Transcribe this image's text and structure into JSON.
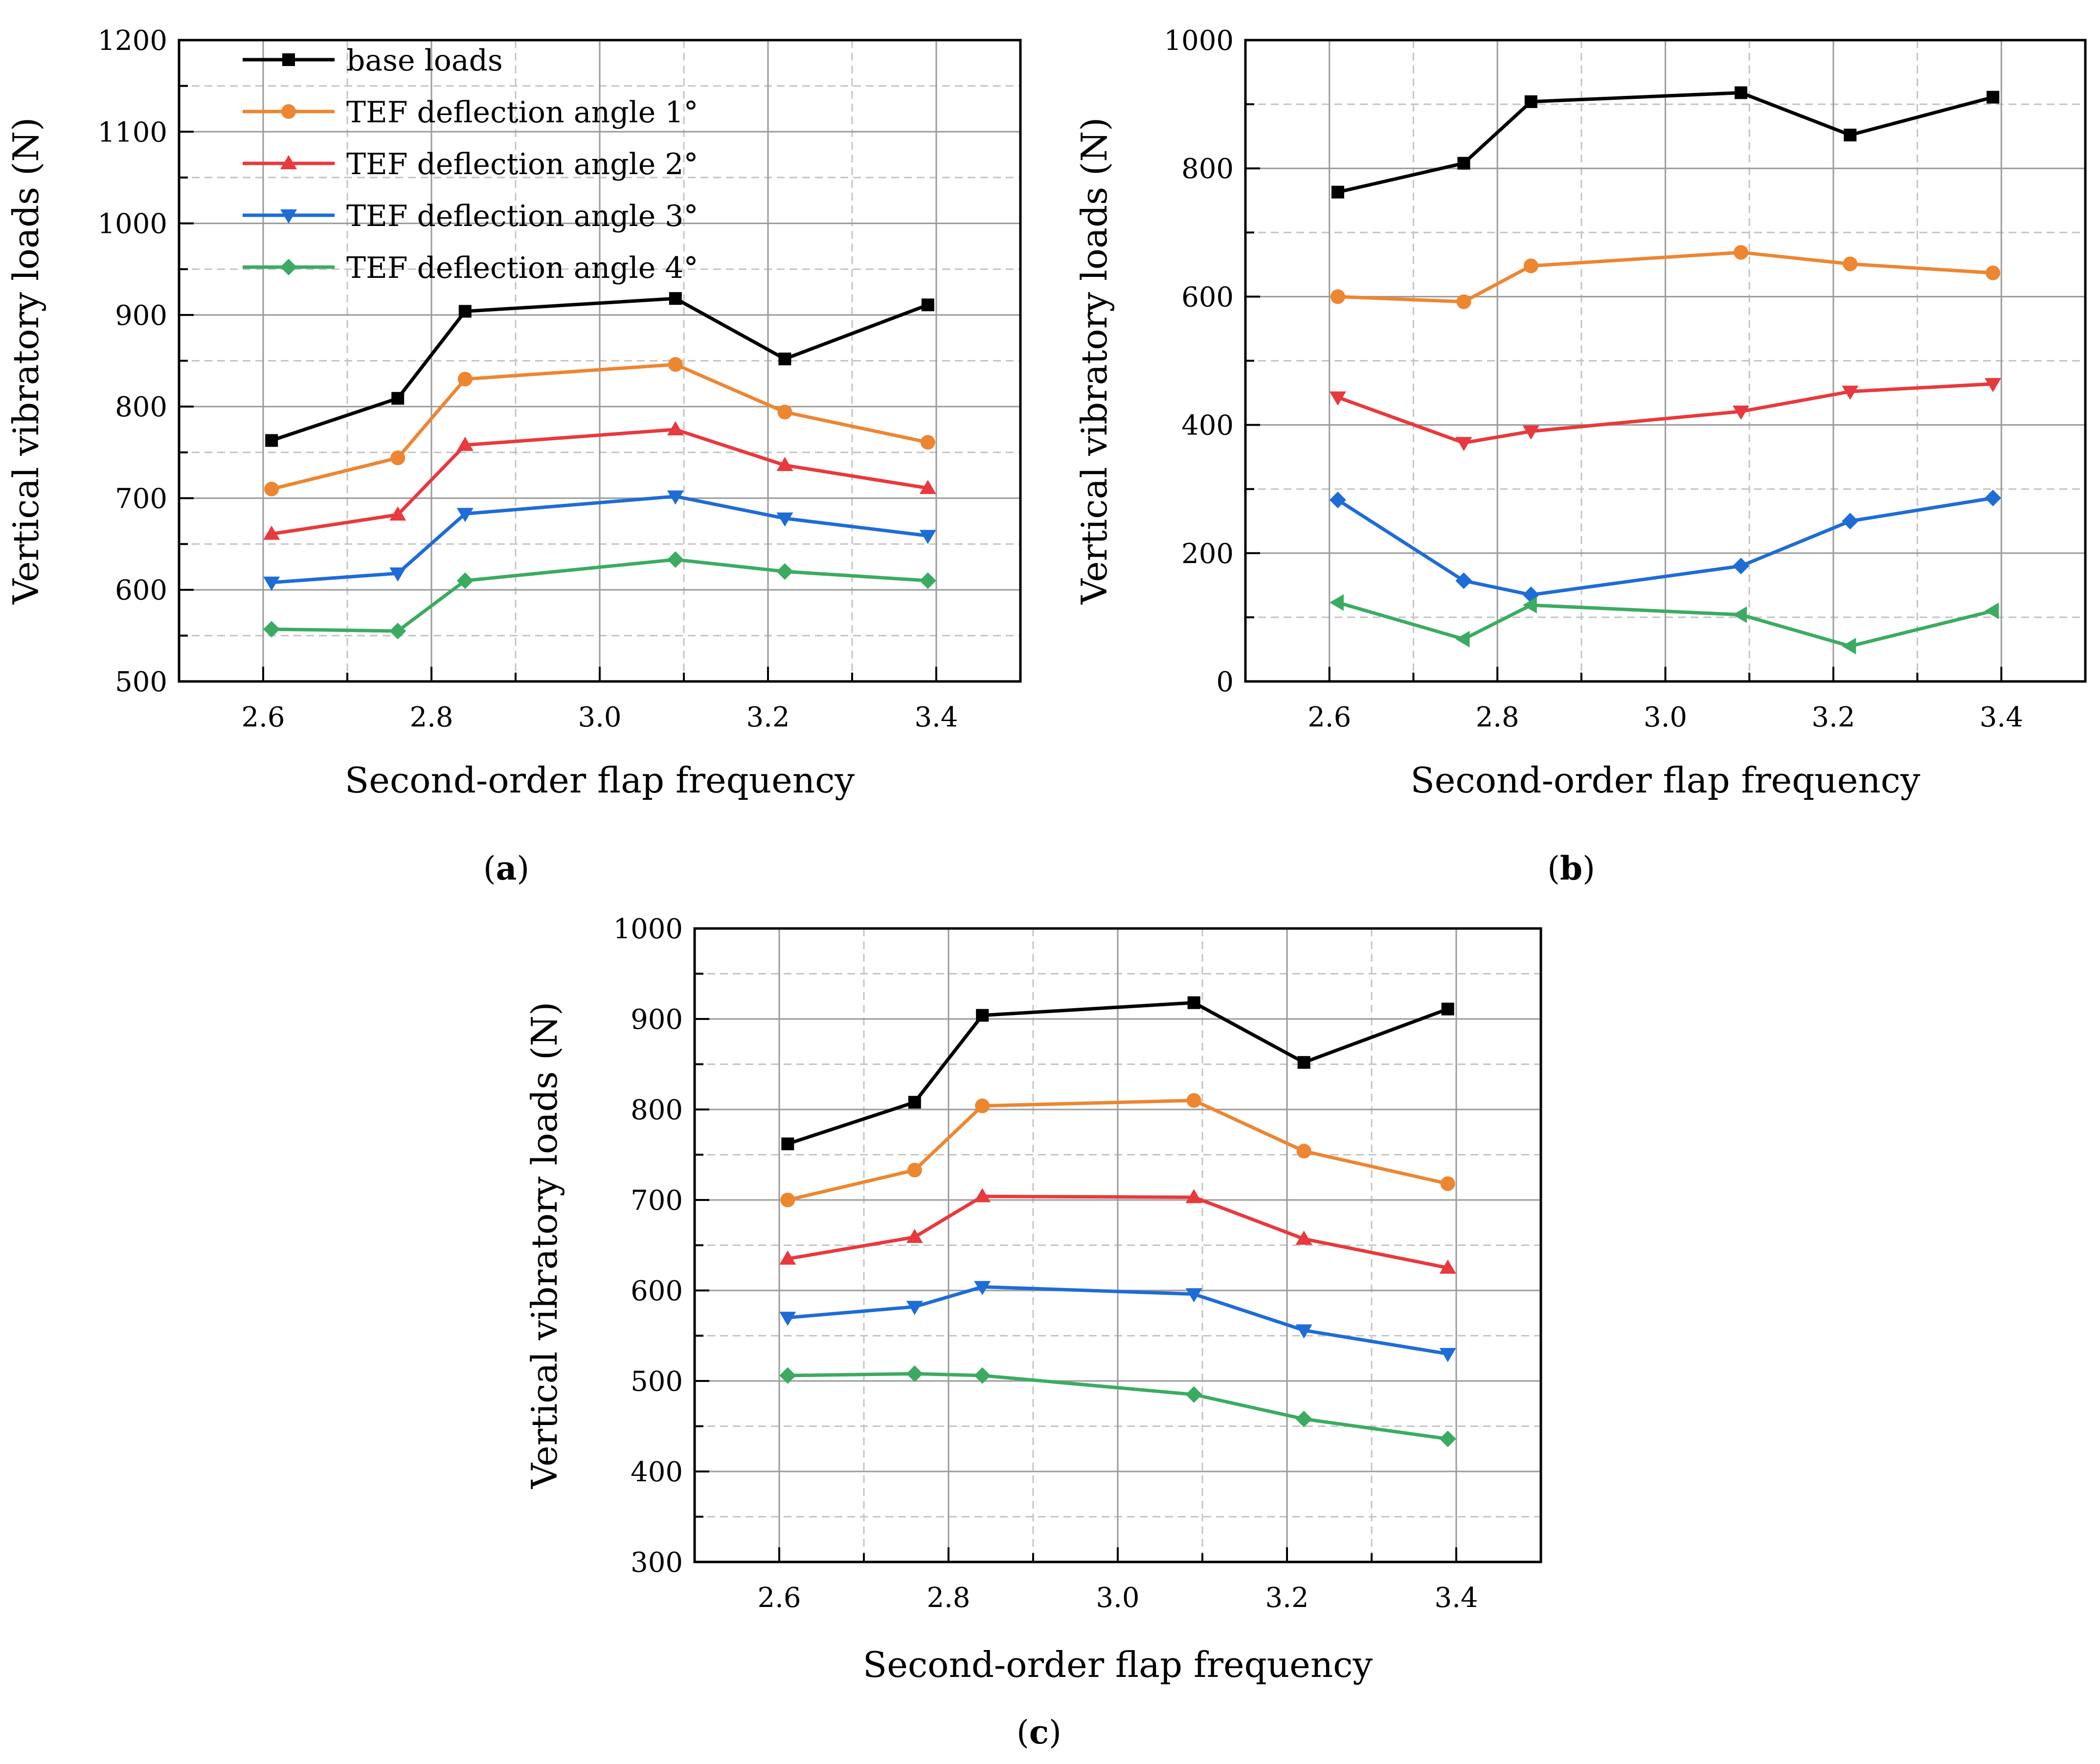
{
  "figure": {
    "captions": [
      "a",
      "b",
      "c"
    ]
  },
  "colors": {
    "base": "#000000",
    "angle1": "#ED8631",
    "angle2": "#E8393E",
    "angle3": "#1E6CD6",
    "angle4": "#3CAB62",
    "grid_major": "#9a9a9a",
    "grid_minor": "#c4c4c4"
  },
  "chart_data": [
    {
      "type": "line",
      "panel": "a",
      "xlabel": "Second-order flap frequency",
      "ylabel": "Vertical vibratory loads (N)",
      "xlim": [
        2.5,
        3.5
      ],
      "ylim": [
        500,
        1200
      ],
      "xticks": [
        2.6,
        2.8,
        3.0,
        3.2,
        3.4
      ],
      "yticks": [
        500,
        600,
        700,
        800,
        900,
        1000,
        1100,
        1200
      ],
      "xtick_labels": [
        "2.6",
        "2.8",
        "3.0",
        "3.2",
        "3.4"
      ],
      "ytick_labels": [
        "500",
        "600",
        "700",
        "800",
        "900",
        "1000",
        "1100",
        "1200"
      ],
      "grid": true,
      "legend_position": "top-left",
      "x": [
        2.61,
        2.76,
        2.84,
        3.09,
        3.22,
        3.39
      ],
      "series": [
        {
          "name": "base loads",
          "marker": "square",
          "color_key": "base",
          "values": [
            763,
            809,
            904,
            918,
            852,
            911
          ]
        },
        {
          "name": "TEF deflection angle 1°",
          "marker": "circle",
          "color_key": "angle1",
          "values": [
            710,
            744,
            830,
            846,
            794,
            761
          ]
        },
        {
          "name": "TEF deflection angle 2°",
          "marker": "triangle-up",
          "color_key": "angle2",
          "values": [
            661,
            682,
            758,
            775,
            736,
            711
          ]
        },
        {
          "name": "TEF deflection angle 3°",
          "marker": "triangle-down",
          "color_key": "angle3",
          "values": [
            608,
            618,
            683,
            702,
            678,
            659
          ]
        },
        {
          "name": "TEF deflection angle 4°",
          "marker": "diamond",
          "color_key": "angle4",
          "values": [
            557,
            555,
            610,
            633,
            620,
            610
          ]
        }
      ]
    },
    {
      "type": "line",
      "panel": "b",
      "xlabel": "Second-order flap frequency",
      "ylabel": "Vertical vibratory loads (N)",
      "xlim": [
        2.5,
        3.5
      ],
      "ylim": [
        0,
        1000
      ],
      "xticks": [
        2.6,
        2.8,
        3.0,
        3.2,
        3.4
      ],
      "yticks": [
        0,
        200,
        400,
        600,
        800,
        1000
      ],
      "xtick_labels": [
        "2.6",
        "2.8",
        "3.0",
        "3.2",
        "3.4"
      ],
      "ytick_labels": [
        "0",
        "200",
        "400",
        "600",
        "800",
        "1000"
      ],
      "grid": true,
      "x": [
        2.61,
        2.76,
        2.84,
        3.09,
        3.22,
        3.39
      ],
      "series": [
        {
          "name": "base loads",
          "marker": "square",
          "color_key": "base",
          "values": [
            763,
            808,
            904,
            918,
            852,
            911
          ]
        },
        {
          "name": "TEF deflection angle 1°",
          "marker": "circle",
          "color_key": "angle1",
          "values": [
            600,
            592,
            648,
            669,
            651,
            637
          ]
        },
        {
          "name": "TEF deflection angle 2°",
          "marker": "triangle-down",
          "color_key": "angle2",
          "values": [
            443,
            372,
            390,
            421,
            452,
            464
          ]
        },
        {
          "name": "TEF deflection angle 3°",
          "marker": "diamond",
          "color_key": "angle3",
          "values": [
            283,
            157,
            135,
            180,
            250,
            286
          ]
        },
        {
          "name": "TEF deflection angle 4°",
          "marker": "triangle-left",
          "color_key": "angle4",
          "values": [
            123,
            66,
            119,
            104,
            55,
            110
          ]
        }
      ]
    },
    {
      "type": "line",
      "panel": "c",
      "xlabel": "Second-order flap frequency",
      "ylabel": "Vertical vibratory loads (N)",
      "xlim": [
        2.5,
        3.5
      ],
      "ylim": [
        300,
        1000
      ],
      "xticks": [
        2.6,
        2.8,
        3.0,
        3.2,
        3.4
      ],
      "yticks": [
        300,
        400,
        500,
        600,
        700,
        800,
        900,
        1000
      ],
      "xtick_labels": [
        "2.6",
        "2.8",
        "3.0",
        "3.2",
        "3.4"
      ],
      "ytick_labels": [
        "300",
        "400",
        "500",
        "600",
        "700",
        "800",
        "900",
        "1000"
      ],
      "grid": true,
      "x": [
        2.61,
        2.76,
        2.84,
        3.09,
        3.22,
        3.39
      ],
      "series": [
        {
          "name": "base loads",
          "marker": "square",
          "color_key": "base",
          "values": [
            762,
            808,
            904,
            918,
            852,
            911
          ]
        },
        {
          "name": "TEF deflection angle 1°",
          "marker": "circle",
          "color_key": "angle1",
          "values": [
            700,
            733,
            804,
            810,
            754,
            718
          ]
        },
        {
          "name": "TEF deflection angle 2°",
          "marker": "triangle-up",
          "color_key": "angle2",
          "values": [
            635,
            659,
            704,
            703,
            657,
            625
          ]
        },
        {
          "name": "TEF deflection angle 3°",
          "marker": "triangle-down",
          "color_key": "angle3",
          "values": [
            570,
            582,
            604,
            596,
            556,
            530
          ]
        },
        {
          "name": "TEF deflection angle 4°",
          "marker": "diamond",
          "color_key": "angle4",
          "values": [
            506,
            508,
            506,
            485,
            458,
            436
          ]
        }
      ]
    }
  ]
}
